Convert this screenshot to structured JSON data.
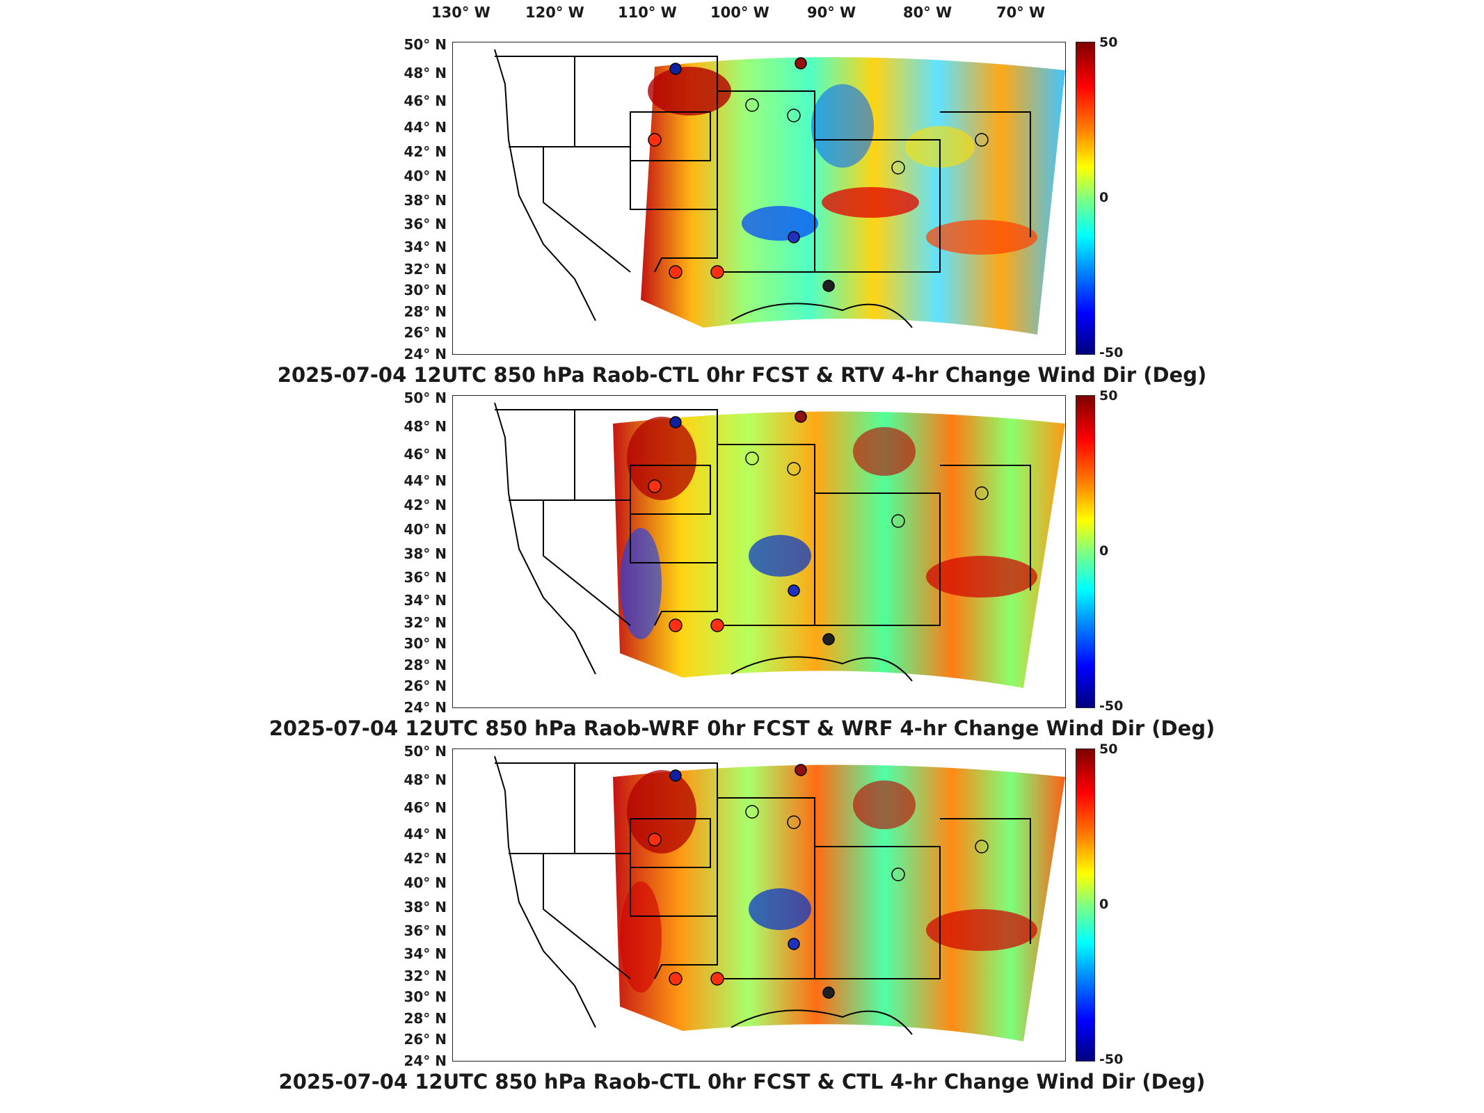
{
  "lon_labels": [
    "130° W",
    "120° W",
    "110° W",
    "100° W",
    "90° W",
    "80° W",
    "70° W"
  ],
  "lat_labels": [
    "50° N",
    "48° N",
    "46° N",
    "44° N",
    "42° N",
    "40° N",
    "38° N",
    "36° N",
    "34° N",
    "32° N",
    "30° N",
    "28° N",
    "26° N",
    "24° N"
  ],
  "colorbar": {
    "max": "50",
    "mid": "0",
    "min": "-50",
    "colormap": "jet"
  },
  "panels": [
    {
      "caption": "2025-07-04 12UTC 850 hPa Raob-CTL 0hr FCST & RTV 4-hr Change Wind Dir (Deg)"
    },
    {
      "caption": "2025-07-04 12UTC 850 hPa Raob-WRF 0hr FCST & WRF 4-hr Change Wind Dir (Deg)"
    },
    {
      "caption": "2025-07-04 12UTC 850 hPa Raob-CTL 0hr FCST & CTL 4-hr Change Wind Dir (Deg)"
    }
  ],
  "colors": {
    "jet_high": "#7f0000",
    "jet_mid": "#80ff80",
    "jet_low": "#00007f",
    "border": "#000000"
  }
}
